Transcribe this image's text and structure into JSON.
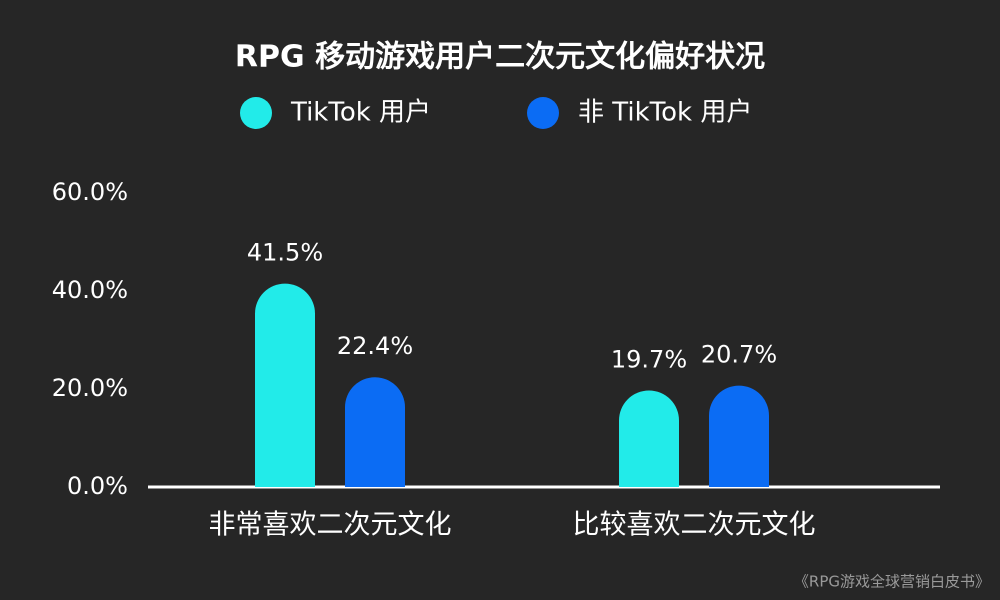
{
  "chart_data": {
    "type": "bar",
    "title": "RPG 移动游戏用户二次元文化偏好状况",
    "categories": [
      "非常喜欢二次元文化",
      "比较喜欢二次元文化"
    ],
    "series": [
      {
        "name": "TikTok 用户",
        "color": "#22ebe9",
        "values": [
          41.5,
          19.7
        ],
        "value_labels": [
          "41.5%",
          "19.7%"
        ]
      },
      {
        "name": "非 TikTok 用户",
        "color": "#0b6cf4",
        "values": [
          22.4,
          20.7
        ],
        "value_labels": [
          "22.4%",
          "20.7%"
        ]
      }
    ],
    "ylim": [
      0,
      60
    ],
    "yticks": [
      {
        "value": 0,
        "label": "0.0%"
      },
      {
        "value": 20,
        "label": "20.0%"
      },
      {
        "value": 40,
        "label": "40.0%"
      },
      {
        "value": 60,
        "label": "60.0%"
      }
    ],
    "grid": false,
    "legend": "top",
    "source": "《RPG游戏全球营销白皮书》"
  }
}
